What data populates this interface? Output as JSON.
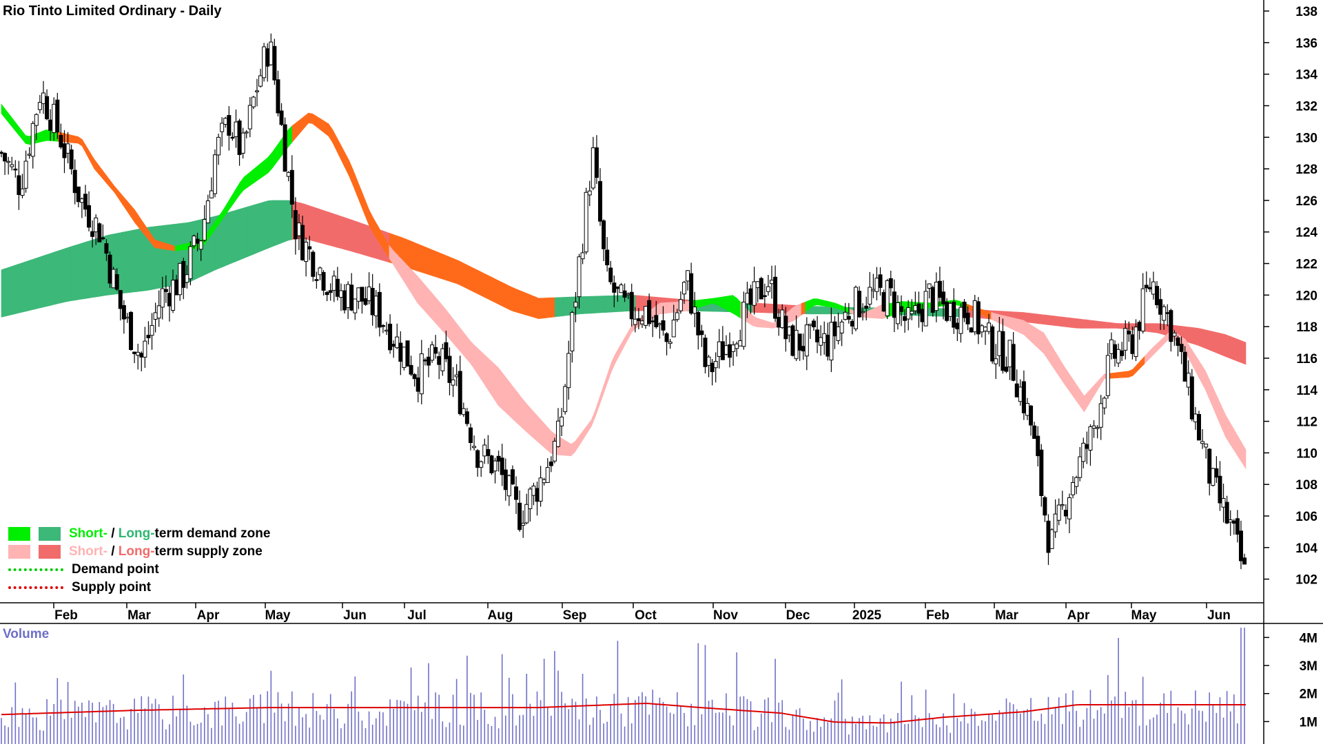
{
  "title": "Rio Tinto Limited Ordinary - Daily",
  "volume_label": "Volume",
  "legend": {
    "demand_short": "Short-",
    "demand_sep": " / ",
    "demand_long": "Long-",
    "demand_rest": "term demand zone",
    "supply_short": "Short-",
    "supply_sep": " / ",
    "supply_long": "Long-",
    "supply_rest": "term supply zone",
    "demand_point": "Demand point",
    "supply_point": "Supply point"
  },
  "colors": {
    "short_demand": "#00ee00",
    "long_demand": "#3cb878",
    "short_supply": "#ffb3b3",
    "long_supply": "#f26b6b",
    "orange_zone": "#ff6a1a",
    "demand_point": "#00cc00",
    "supply_point": "#dd0000",
    "volume_bar": "#6f6fc8",
    "volume_avg": "#dd0000",
    "candle": "#000000"
  },
  "chart_data": [
    {
      "type": "candlestick",
      "title": "Rio Tinto Limited Ordinary - Daily",
      "x_tick_labels": [
        "Feb",
        "Mar",
        "Apr",
        "May",
        "Jun",
        "Jul",
        "Aug",
        "Sep",
        "Oct",
        "Nov",
        "Dec",
        "2025",
        "Feb",
        "Mar",
        "Apr",
        "May",
        "Jun"
      ],
      "y_tick_labels": [
        102,
        104,
        106,
        108,
        110,
        112,
        114,
        116,
        118,
        120,
        122,
        124,
        126,
        128,
        130,
        132,
        134,
        136,
        138
      ],
      "ylim": [
        100.5,
        138.7
      ],
      "close_path": [
        [
          1,
          129
        ],
        [
          15,
          127
        ],
        [
          30,
          133
        ],
        [
          45,
          130
        ],
        [
          60,
          126
        ],
        [
          75,
          124
        ],
        [
          90,
          119
        ],
        [
          105,
          116
        ],
        [
          120,
          120
        ],
        [
          135,
          121
        ],
        [
          150,
          124
        ],
        [
          160,
          129
        ],
        [
          170,
          131
        ],
        [
          180,
          129
        ],
        [
          190,
          133
        ],
        [
          200,
          136
        ],
        [
          210,
          130
        ],
        [
          220,
          124
        ],
        [
          235,
          122
        ],
        [
          250,
          120
        ],
        [
          265,
          120
        ],
        [
          280,
          119
        ],
        [
          295,
          117
        ],
        [
          310,
          115
        ],
        [
          325,
          116
        ],
        [
          340,
          114
        ],
        [
          355,
          110
        ],
        [
          370,
          109
        ],
        [
          385,
          106
        ],
        [
          400,
          108
        ],
        [
          415,
          111
        ],
        [
          430,
          122
        ],
        [
          440,
          129
        ],
        [
          450,
          121
        ],
        [
          465,
          119
        ],
        [
          480,
          119
        ],
        [
          495,
          117
        ],
        [
          510,
          121
        ],
        [
          525,
          115
        ],
        [
          540,
          117
        ],
        [
          555,
          119
        ],
        [
          570,
          121
        ],
        [
          585,
          117
        ],
        [
          600,
          117
        ],
        [
          615,
          117
        ],
        [
          630,
          119
        ],
        [
          645,
          120
        ],
        [
          660,
          120
        ],
        [
          675,
          118
        ],
        [
          690,
          120
        ],
        [
          705,
          119
        ],
        [
          720,
          119
        ],
        [
          735,
          117
        ],
        [
          750,
          116
        ],
        [
          765,
          112
        ],
        [
          780,
          104
        ],
        [
          795,
          108
        ],
        [
          810,
          111
        ],
        [
          825,
          116
        ],
        [
          840,
          117
        ],
        [
          855,
          121
        ],
        [
          870,
          118
        ],
        [
          885,
          113
        ],
        [
          900,
          108
        ],
        [
          915,
          105
        ],
        [
          925,
          102
        ]
      ],
      "zones": {
        "long_term": [
          [
            1,
            118.6,
            121.6
          ],
          [
            50,
            119.6,
            123.0
          ],
          [
            80,
            120.0,
            123.8
          ],
          [
            110,
            120.3,
            124.3
          ],
          [
            140,
            120.8,
            124.6
          ],
          [
            160,
            121.6,
            125.0
          ],
          [
            180,
            122.3,
            125.5
          ],
          [
            200,
            123.0,
            126.0
          ],
          [
            215,
            123.5,
            126.0
          ],
          [
            225,
            123.6,
            125.8
          ],
          [
            260,
            122.8,
            124.8
          ],
          [
            300,
            121.8,
            123.6
          ],
          [
            340,
            120.7,
            122.2
          ],
          [
            380,
            119.0,
            120.5
          ],
          [
            400,
            118.5,
            119.8
          ],
          [
            430,
            118.8,
            119.9
          ],
          [
            470,
            119.0,
            120.0
          ],
          [
            510,
            119.0,
            119.7
          ],
          [
            560,
            118.9,
            119.5
          ],
          [
            600,
            118.8,
            119.3
          ],
          [
            640,
            118.8,
            119.2
          ],
          [
            680,
            118.7,
            119.2
          ],
          [
            720,
            118.6,
            119.1
          ],
          [
            760,
            118.3,
            118.9
          ],
          [
            800,
            117.9,
            118.5
          ],
          [
            830,
            117.9,
            118.2
          ],
          [
            860,
            117.6,
            118.2
          ],
          [
            890,
            116.8,
            117.9
          ],
          [
            910,
            116.1,
            117.5
          ],
          [
            925,
            115.6,
            117.0
          ]
        ],
        "short_term": [
          [
            1,
            131.5,
            132.1
          ],
          [
            20,
            129.5,
            130.0
          ],
          [
            35,
            129.8,
            130.5
          ],
          [
            60,
            129.6,
            130.0
          ],
          [
            70,
            128.0,
            128.6
          ],
          [
            85,
            126.5,
            126.9
          ],
          [
            100,
            124.6,
            125.4
          ],
          [
            115,
            123.0,
            123.5
          ],
          [
            130,
            122.8,
            123.1
          ],
          [
            150,
            123.0,
            123.5
          ],
          [
            165,
            124.8,
            125.3
          ],
          [
            180,
            126.6,
            127.4
          ],
          [
            200,
            127.8,
            128.8
          ],
          [
            215,
            129.5,
            130.6
          ],
          [
            230,
            131.0,
            131.6
          ],
          [
            245,
            130.0,
            130.8
          ],
          [
            260,
            127.4,
            128.4
          ],
          [
            275,
            124.2,
            125.2
          ],
          [
            290,
            122.2,
            123.0
          ],
          [
            310,
            119.5,
            121.2
          ],
          [
            330,
            117.6,
            119.2
          ],
          [
            350,
            115.6,
            117.0
          ],
          [
            370,
            113.0,
            115.4
          ],
          [
            390,
            111.4,
            113.2
          ],
          [
            410,
            109.9,
            111.3
          ],
          [
            425,
            109.8,
            110.5
          ],
          [
            440,
            111.8,
            112.2
          ],
          [
            455,
            115.4,
            116.0
          ],
          [
            470,
            117.8,
            118.2
          ],
          [
            490,
            118.8,
            119.5
          ],
          [
            510,
            119.0,
            119.6
          ],
          [
            530,
            119.5,
            119.8
          ],
          [
            545,
            118.8,
            120.0
          ],
          [
            560,
            118.0,
            118.6
          ],
          [
            575,
            117.9,
            118.2
          ],
          [
            590,
            118.4,
            119.3
          ],
          [
            605,
            119.4,
            119.8
          ],
          [
            620,
            119.2,
            119.5
          ],
          [
            640,
            118.6,
            118.8
          ],
          [
            655,
            118.5,
            119.4
          ],
          [
            670,
            118.9,
            119.6
          ],
          [
            690,
            119.2,
            119.5
          ],
          [
            710,
            119.4,
            119.7
          ],
          [
            725,
            118.9,
            119.2
          ],
          [
            740,
            118.3,
            118.8
          ],
          [
            760,
            117.5,
            118.4
          ],
          [
            775,
            116.3,
            117.6
          ],
          [
            790,
            114.4,
            115.5
          ],
          [
            805,
            112.6,
            113.6
          ],
          [
            820,
            114.7,
            115.0
          ],
          [
            840,
            114.8,
            115.2
          ],
          [
            855,
            116.1,
            116.6
          ],
          [
            870,
            117.4,
            117.8
          ],
          [
            880,
            116.4,
            117.2
          ],
          [
            895,
            114.0,
            115.2
          ],
          [
            910,
            111.0,
            112.4
          ],
          [
            925,
            109.0,
            110.2
          ]
        ]
      }
    },
    {
      "type": "bar",
      "title": "Volume",
      "y_tick_labels": [
        "1M",
        "2M",
        "3M",
        "4M"
      ],
      "ylim": [
        0.2,
        4.5
      ],
      "average_path": [
        [
          1,
          1.25
        ],
        [
          100,
          1.4
        ],
        [
          200,
          1.5
        ],
        [
          300,
          1.5
        ],
        [
          400,
          1.5
        ],
        [
          480,
          1.65
        ],
        [
          520,
          1.5
        ],
        [
          580,
          1.3
        ],
        [
          620,
          0.98
        ],
        [
          660,
          0.95
        ],
        [
          700,
          1.15
        ],
        [
          760,
          1.35
        ],
        [
          800,
          1.6
        ],
        [
          840,
          1.6
        ],
        [
          880,
          1.6
        ],
        [
          925,
          1.6
        ]
      ]
    }
  ]
}
